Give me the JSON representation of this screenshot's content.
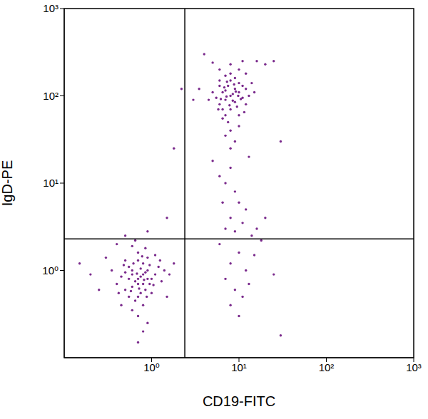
{
  "chart_data": {
    "type": "scatter",
    "x_label": "CD19-FITC",
    "y_label": "IgD-PE",
    "color": "#7a2a8c",
    "marker": "dot",
    "log": true,
    "grid": false,
    "xlim": [
      0.1,
      1000
    ],
    "ylim": [
      0.1,
      1000
    ],
    "xticks": [
      {
        "value": 1,
        "label": "10⁰"
      },
      {
        "value": 10,
        "label": "10¹"
      },
      {
        "value": 100,
        "label": "10²"
      },
      {
        "value": 1000,
        "label": "10³"
      }
    ],
    "yticks": [
      {
        "value": 1,
        "label": "10⁰"
      },
      {
        "value": 10,
        "label": "10¹"
      },
      {
        "value": 100,
        "label": "10²"
      },
      {
        "value": 1000,
        "label": "10³"
      }
    ],
    "quadrant_lines": {
      "x": 2.4,
      "y": 2.3
    },
    "x": [
      0.7,
      0.6,
      0.8,
      0.9,
      0.5,
      0.75,
      0.65,
      0.85,
      1.0,
      0.55,
      0.7,
      0.8,
      0.6,
      0.95,
      0.45,
      1.1,
      0.7,
      0.85,
      0.6,
      0.75,
      0.9,
      0.5,
      1.2,
      0.65,
      0.8,
      0.7,
      0.4,
      1.3,
      0.55,
      0.9,
      0.75,
      0.6,
      1.0,
      0.35,
      0.8,
      0.7,
      0.5,
      1.4,
      0.85,
      0.6,
      0.25,
      0.3,
      1.6,
      0.7,
      0.9,
      1.1,
      0.45,
      0.65,
      1.5,
      0.2,
      0.8,
      0.55,
      0.95,
      0.72,
      0.62,
      0.88,
      1.05,
      0.48,
      0.78,
      0.68,
      0.58,
      0.82,
      1.25,
      0.42,
      0.15,
      1.8,
      0.7,
      0.5,
      0.9,
      0.4,
      8,
      7,
      9,
      6,
      10,
      8,
      7.5,
      9,
      6.5,
      11,
      8,
      7,
      10,
      5.5,
      12,
      8.5,
      6,
      9.5,
      7,
      8,
      10,
      5,
      13,
      7.5,
      9,
      6.5,
      11,
      8,
      7,
      10,
      6,
      12,
      8.5,
      7.2,
      9.2,
      6.8,
      10.5,
      5.8,
      14,
      8,
      6,
      4.5,
      11,
      9,
      7,
      15,
      8,
      10,
      6.5,
      12,
      16,
      20,
      5,
      3.5,
      7.8,
      8.8,
      9.8,
      6.2,
      11.5,
      7.3,
      8,
      7,
      9,
      6,
      10,
      12,
      8,
      7,
      11,
      9,
      14,
      6,
      10,
      8,
      12,
      15,
      7,
      9,
      11,
      13,
      8,
      10,
      16,
      18,
      20,
      5,
      13,
      6.5,
      25,
      30,
      2.2,
      3,
      1.8,
      1.5,
      30,
      25,
      4
    ],
    "values": [
      0.8,
      0.9,
      0.7,
      1.0,
      0.6,
      0.85,
      0.75,
      0.95,
      0.8,
      1.1,
      0.5,
      1.2,
      0.65,
      0.7,
      0.85,
      0.9,
      1.3,
      0.6,
      1.0,
      0.55,
      0.8,
      0.95,
      1.1,
      0.45,
      0.9,
      0.7,
      0.7,
      0.75,
      0.5,
      1.4,
      1.05,
      0.35,
      0.55,
      1.0,
      0.4,
      1.6,
      1.3,
      1.0,
      1.8,
      1.9,
      0.6,
      1.4,
      0.9,
      0.3,
      0.25,
      1.5,
      0.4,
      2.2,
      0.5,
      0.9,
      0.2,
      0.8,
      1.15,
      0.62,
      1.2,
      0.5,
      0.68,
      1.15,
      1.45,
      0.92,
      0.58,
      0.78,
      1.3,
      0.55,
      1.2,
      1.2,
      0.15,
      2.5,
      2.8,
      2.0,
      100,
      90,
      120,
      80,
      110,
      70,
      130,
      85,
      110,
      95,
      150,
      60,
      140,
      95,
      120,
      105,
      130,
      75,
      115,
      180,
      60,
      110,
      100,
      50,
      160,
      70,
      130,
      40,
      170,
      200,
      150,
      80,
      88,
      98,
      112,
      125,
      92,
      70,
      140,
      230,
      200,
      90,
      250,
      30,
      35,
      110,
      25,
      45,
      55,
      180,
      250,
      230,
      240,
      120,
      78,
      135,
      100,
      92,
      65,
      145,
      15,
      10,
      8,
      12,
      6,
      5,
      4,
      3,
      3.5,
      2.8,
      2.5,
      2,
      1.6,
      1.2,
      1,
      1.5,
      0.8,
      0.6,
      0.5,
      0.7,
      0.4,
      0.3,
      3,
      2.2,
      4,
      18,
      20,
      6,
      0.9,
      0.18,
      120,
      90,
      25,
      4,
      30,
      250,
      300
    ]
  }
}
